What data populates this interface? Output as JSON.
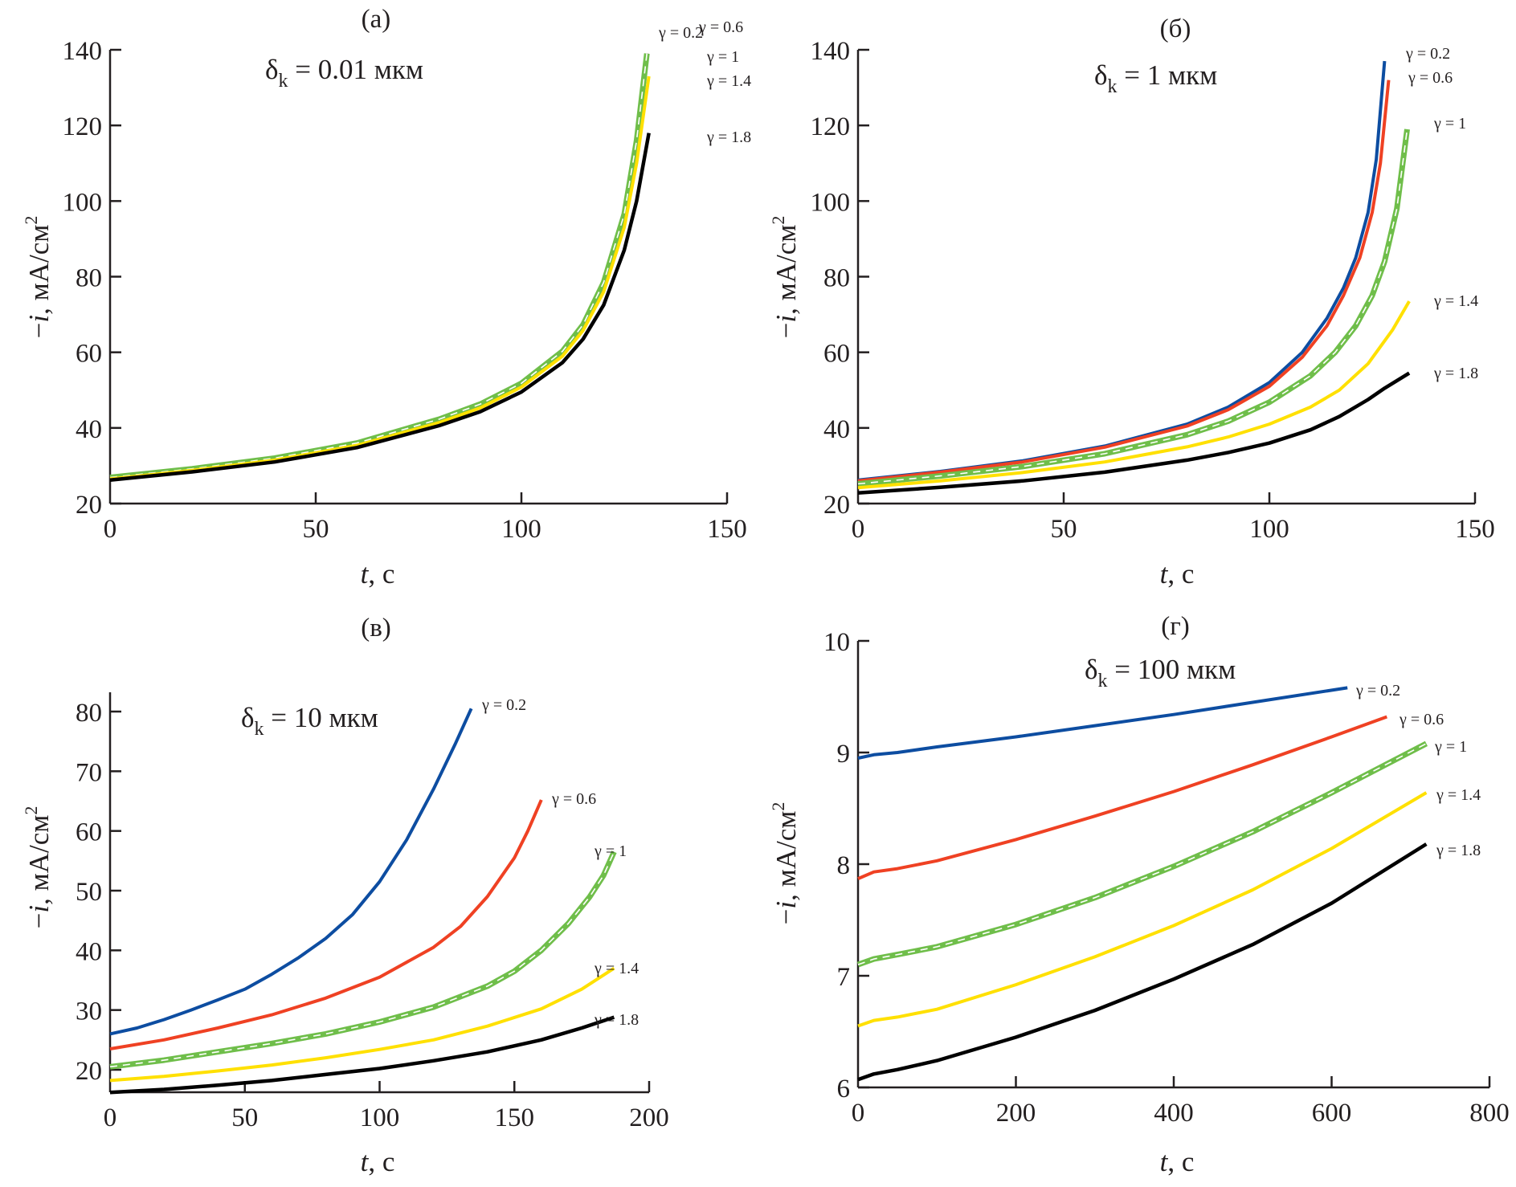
{
  "figure": {
    "panels_count": 4
  },
  "chart_data": [
    {
      "type": "line",
      "panel_label": "(a)",
      "annotation": {
        "symbol": "δ",
        "subscript": "k",
        "text": " = 0.01 мкм"
      },
      "xlabel": {
        "var": "t",
        "unit": ", с"
      },
      "ylabel": {
        "prefix": "−",
        "var": "i",
        "unit": ", мА/см",
        "sup": "2"
      },
      "xlim": [
        0,
        150
      ],
      "ylim": [
        20,
        140
      ],
      "xticks": [
        0,
        50,
        100,
        150
      ],
      "yticks": [
        20,
        40,
        60,
        80,
        100,
        120,
        140
      ],
      "grid": false,
      "series": [
        {
          "name": "γ = 0.2",
          "color": "#0d4da1",
          "style": "solid",
          "x": [
            0,
            20,
            40,
            60,
            80,
            90,
            100,
            110,
            115,
            120,
            125,
            128,
            130.5
          ],
          "y": [
            26.8,
            29,
            31.8,
            35.8,
            42,
            46,
            51.5,
            60,
            67,
            78,
            96,
            115,
            139
          ],
          "label_pos": "γ = 0.2"
        },
        {
          "name": "γ = 0.6",
          "color": "#ef4123",
          "style": "solid",
          "x": [
            0,
            20,
            40,
            60,
            80,
            90,
            100,
            110,
            115,
            120,
            125,
            128,
            130.5
          ],
          "y": [
            26.8,
            29,
            31.8,
            35.8,
            42,
            46,
            51.5,
            60,
            67,
            78,
            96,
            115,
            139
          ],
          "label_pos": "γ = 0.6"
        },
        {
          "name": "γ = 1",
          "color": "#6fbe4a",
          "style": "dashed",
          "x": [
            0,
            20,
            40,
            60,
            80,
            90,
            100,
            110,
            115,
            120,
            125,
            128,
            130.5
          ],
          "y": [
            26.9,
            29.2,
            32,
            36,
            42.3,
            46.3,
            51.8,
            60.3,
            67.3,
            78.5,
            96.5,
            116,
            139
          ],
          "label_pos": "γ = 1"
        },
        {
          "name": "γ = 1.4",
          "color": "#ffe000",
          "style": "solid",
          "x": [
            0,
            20,
            40,
            60,
            80,
            90,
            100,
            110,
            115,
            120,
            125,
            128,
            131
          ],
          "y": [
            26.5,
            28.8,
            31.5,
            35.4,
            41.4,
            45.3,
            50.8,
            59,
            65.8,
            76,
            93,
            110,
            133
          ],
          "label_pos": "γ = 1.4"
        },
        {
          "name": "γ = 1.8",
          "color": "#000000",
          "style": "solid",
          "x": [
            0,
            20,
            40,
            60,
            80,
            90,
            100,
            110,
            115,
            120,
            125,
            128,
            131
          ],
          "y": [
            26.2,
            28.4,
            31,
            34.8,
            40.6,
            44.3,
            49.5,
            57.3,
            63.5,
            72.5,
            87,
            100,
            118
          ],
          "label_pos": "γ = 1.8"
        }
      ]
    },
    {
      "type": "line",
      "panel_label": "(б)",
      "annotation": {
        "symbol": "δ",
        "subscript": "k",
        "text": " = 1 мкм"
      },
      "xlabel": {
        "var": "t",
        "unit": ", с"
      },
      "ylabel": {
        "prefix": "−",
        "var": "i",
        "unit": ", мА/см",
        "sup": "2"
      },
      "xlim": [
        0,
        150
      ],
      "ylim": [
        20,
        140
      ],
      "xticks": [
        0,
        50,
        100,
        150
      ],
      "yticks": [
        20,
        40,
        60,
        80,
        100,
        120,
        140
      ],
      "grid": false,
      "series": [
        {
          "name": "γ = 0.2",
          "color": "#0d4da1",
          "style": "solid",
          "x": [
            0,
            20,
            40,
            60,
            80,
            90,
            100,
            108,
            114,
            118,
            121,
            124,
            126,
            128
          ],
          "y": [
            26.2,
            28.5,
            31.3,
            35.2,
            41,
            45.5,
            52,
            60,
            69,
            77,
            85,
            97,
            111,
            137
          ]
        },
        {
          "name": "γ = 0.6",
          "color": "#ef4123",
          "style": "solid",
          "x": [
            0,
            20,
            40,
            60,
            80,
            90,
            100,
            108,
            114,
            118,
            122,
            125,
            127,
            129
          ],
          "y": [
            26,
            28.3,
            31,
            34.9,
            40.5,
            44.8,
            51,
            58.7,
            67,
            75,
            85,
            97,
            110,
            132
          ]
        },
        {
          "name": "γ = 1",
          "color": "#6fbe4a",
          "style": "dashed",
          "x": [
            0,
            20,
            40,
            60,
            80,
            90,
            100,
            110,
            116,
            121,
            125,
            128,
            131,
            133.5
          ],
          "y": [
            25.2,
            27.3,
            29.8,
            33.2,
            38.2,
            41.8,
            46.8,
            53.8,
            60,
            67,
            75,
            84,
            98,
            119
          ]
        },
        {
          "name": "γ = 1.4",
          "color": "#ffe000",
          "style": "solid",
          "x": [
            0,
            20,
            40,
            60,
            80,
            90,
            100,
            110,
            117,
            124,
            130,
            134
          ],
          "y": [
            24.2,
            26,
            28.2,
            31,
            35,
            37.6,
            41,
            45.5,
            50,
            57,
            66,
            73.5
          ]
        },
        {
          "name": "γ = 1.8",
          "color": "#000000",
          "style": "solid",
          "x": [
            0,
            20,
            40,
            60,
            80,
            90,
            100,
            110,
            117,
            124,
            128,
            134
          ],
          "y": [
            22.8,
            24.3,
            26,
            28.3,
            31.5,
            33.5,
            36,
            39.5,
            43,
            47.5,
            50.5,
            54.5
          ]
        }
      ]
    },
    {
      "type": "line",
      "panel_label": "(в)",
      "annotation": {
        "symbol": "δ",
        "subscript": "k",
        "text": " = 10 мкм"
      },
      "xlabel": {
        "var": "t",
        "unit": ", с"
      },
      "ylabel": {
        "prefix": "−",
        "var": "i",
        "unit": ", мА/см",
        "sup": "2"
      },
      "xlim": [
        0,
        200
      ],
      "ylim": [
        16.2,
        83
      ],
      "xticks": [
        0,
        50,
        100,
        150,
        200
      ],
      "yticks": [
        20,
        30,
        40,
        50,
        60,
        70,
        80
      ],
      "grid": false,
      "series": [
        {
          "name": "γ = 0.2",
          "color": "#0d4da1",
          "style": "solid",
          "x": [
            0,
            10,
            20,
            30,
            40,
            50,
            60,
            70,
            80,
            90,
            100,
            110,
            120,
            128,
            134
          ],
          "y": [
            26,
            27,
            28.4,
            30,
            31.7,
            33.5,
            36,
            38.8,
            42,
            46,
            51.5,
            58.5,
            67,
            74.5,
            80.5
          ]
        },
        {
          "name": "γ = 0.6",
          "color": "#ef4123",
          "style": "solid",
          "x": [
            0,
            20,
            40,
            60,
            80,
            100,
            120,
            130,
            140,
            150,
            155,
            160
          ],
          "y": [
            23.5,
            25,
            27,
            29.2,
            32,
            35.5,
            40.5,
            44,
            49,
            55.5,
            60,
            65.2
          ]
        },
        {
          "name": "γ = 1",
          "color": "#6fbe4a",
          "style": "dashed",
          "x": [
            0,
            20,
            40,
            60,
            80,
            100,
            120,
            140,
            150,
            160,
            170,
            178,
            183,
            187
          ],
          "y": [
            20.5,
            21.6,
            23,
            24.4,
            26,
            28,
            30.5,
            34,
            36.5,
            40,
            44.5,
            49,
            52.5,
            56.5
          ]
        },
        {
          "name": "γ = 1.4",
          "color": "#ffe000",
          "style": "solid",
          "x": [
            0,
            20,
            40,
            60,
            80,
            100,
            120,
            140,
            160,
            175,
            187
          ],
          "y": [
            18.2,
            18.9,
            19.8,
            20.8,
            22,
            23.4,
            25,
            27.3,
            30.2,
            33.5,
            37
          ]
        },
        {
          "name": "γ = 1.8",
          "color": "#000000",
          "style": "solid",
          "x": [
            0,
            20,
            40,
            60,
            80,
            100,
            120,
            140,
            160,
            175,
            187
          ],
          "y": [
            16.2,
            16.7,
            17.4,
            18.2,
            19.2,
            20.2,
            21.5,
            23,
            25,
            27,
            28.8
          ]
        }
      ]
    },
    {
      "type": "line",
      "panel_label": "(г)",
      "annotation": {
        "symbol": "δ",
        "subscript": "k",
        "text": " = 100 мкм"
      },
      "xlabel": {
        "var": "t",
        "unit": ", с"
      },
      "ylabel": {
        "prefix": "−",
        "var": "i",
        "unit": ", мА/см",
        "sup": "2"
      },
      "xlim": [
        0,
        800
      ],
      "ylim": [
        6,
        10
      ],
      "xticks": [
        0,
        200,
        400,
        600,
        800
      ],
      "yticks": [
        6,
        7,
        8,
        9,
        10
      ],
      "grid": false,
      "series": [
        {
          "name": "γ = 0.2",
          "color": "#0d4da1",
          "style": "solid",
          "x": [
            0,
            20,
            50,
            100,
            200,
            300,
            400,
            500,
            620
          ],
          "y": [
            8.95,
            8.98,
            9.0,
            9.05,
            9.14,
            9.24,
            9.34,
            9.45,
            9.58
          ]
        },
        {
          "name": "γ = 0.6",
          "color": "#ef4123",
          "style": "solid",
          "x": [
            0,
            20,
            50,
            100,
            200,
            300,
            400,
            500,
            600,
            670
          ],
          "y": [
            7.87,
            7.93,
            7.96,
            8.03,
            8.22,
            8.43,
            8.65,
            8.89,
            9.14,
            9.32
          ]
        },
        {
          "name": "γ = 1",
          "color": "#6fbe4a",
          "style": "dashed",
          "x": [
            0,
            20,
            50,
            100,
            200,
            300,
            400,
            500,
            600,
            720
          ],
          "y": [
            7.1,
            7.15,
            7.19,
            7.26,
            7.46,
            7.7,
            7.98,
            8.29,
            8.64,
            9.08
          ]
        },
        {
          "name": "γ = 1.4",
          "color": "#ffe000",
          "style": "solid",
          "x": [
            0,
            20,
            50,
            100,
            200,
            300,
            400,
            500,
            600,
            720
          ],
          "y": [
            6.55,
            6.6,
            6.63,
            6.7,
            6.92,
            7.17,
            7.45,
            7.77,
            8.14,
            8.64
          ]
        },
        {
          "name": "γ = 1.8",
          "color": "#000000",
          "style": "solid",
          "x": [
            0,
            20,
            50,
            100,
            200,
            300,
            400,
            500,
            600,
            720
          ],
          "y": [
            6.07,
            6.12,
            6.16,
            6.24,
            6.45,
            6.69,
            6.97,
            7.28,
            7.65,
            8.18
          ]
        }
      ]
    }
  ]
}
